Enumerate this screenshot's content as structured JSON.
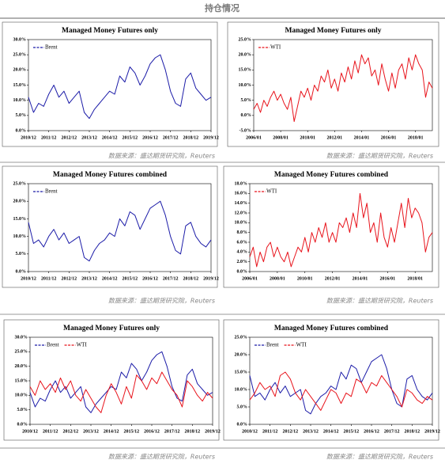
{
  "title": "持仓情况",
  "sources": [
    "数据来源：盛达期货研究院，Reuters",
    "数据来源：盛达期货研究院，Reuters",
    "数据来源：盛达期货研究院，Reuters",
    "数据来源：盛达期货研究院，Reuters",
    "数据来源：盛达期货研究院，Reuters",
    "数据来源：盛达期货研究院，Reuters"
  ],
  "chart_data": [
    {
      "type": "line",
      "title": "Managed Money Futures only",
      "xlim": [
        0,
        36
      ],
      "xticks": [
        {
          "value": 0,
          "label": "2010/12"
        },
        {
          "value": 4,
          "label": "2011/12"
        },
        {
          "value": 8,
          "label": "2012/12"
        },
        {
          "value": 12,
          "label": "2013/12"
        },
        {
          "value": 16,
          "label": "2014/12"
        },
        {
          "value": 20,
          "label": "2015/12"
        },
        {
          "value": 24,
          "label": "2016/12"
        },
        {
          "value": 28,
          "label": "2017/12"
        },
        {
          "value": 32,
          "label": "2018/12"
        },
        {
          "value": 36,
          "label": "2019/12"
        }
      ],
      "ylim": [
        0,
        30
      ],
      "yticks": [
        {
          "value": 0,
          "label": "0.0%"
        },
        {
          "value": 5,
          "label": "5.0%"
        },
        {
          "value": 10,
          "label": "10.0%"
        },
        {
          "value": 15,
          "label": "15.0%"
        },
        {
          "value": 20,
          "label": "20.0%"
        },
        {
          "value": 25,
          "label": "25.0%"
        },
        {
          "value": 30,
          "label": "30.0%"
        }
      ],
      "series": [
        {
          "name": "Brent",
          "color": "#1c1ca8",
          "values": [
            11,
            6,
            9,
            8,
            12,
            15,
            11,
            13,
            9,
            11,
            13,
            6,
            4,
            7,
            9,
            11,
            13,
            12,
            18,
            16,
            21,
            19,
            15,
            18,
            22,
            24,
            25,
            20,
            13,
            9,
            8,
            17,
            19,
            14,
            12,
            10,
            11
          ]
        }
      ]
    },
    {
      "type": "line",
      "title": "Managed Money Futures only",
      "xlim": [
        0,
        53
      ],
      "xticks": [
        {
          "value": 0,
          "label": "2006/01"
        },
        {
          "value": 8,
          "label": "2008/01"
        },
        {
          "value": 16,
          "label": "2010/01"
        },
        {
          "value": 24,
          "label": "2012/01"
        },
        {
          "value": 32,
          "label": "2014/01"
        },
        {
          "value": 40,
          "label": "2016/01"
        },
        {
          "value": 48,
          "label": "2018/01"
        }
      ],
      "ylim": [
        -5,
        25
      ],
      "yticks": [
        {
          "value": -5,
          "label": "-5.0%"
        },
        {
          "value": 0,
          "label": "0.0%"
        },
        {
          "value": 5,
          "label": "5.0%"
        },
        {
          "value": 10,
          "label": "10.0%"
        },
        {
          "value": 15,
          "label": "15.0%"
        },
        {
          "value": 20,
          "label": "20.0%"
        },
        {
          "value": 25,
          "label": "25.0%"
        }
      ],
      "series": [
        {
          "name": "WTI",
          "color": "#e8141c",
          "values": [
            2,
            4,
            1,
            5,
            3,
            6,
            8,
            5,
            7,
            4,
            2,
            6,
            -2,
            3,
            8,
            6,
            9,
            5,
            10,
            8,
            13,
            11,
            15,
            9,
            12,
            8,
            14,
            11,
            16,
            12,
            18,
            14,
            20,
            17,
            19,
            13,
            15,
            10,
            17,
            12,
            8,
            14,
            9,
            15,
            17,
            12,
            19,
            15,
            20,
            17,
            15,
            6,
            11,
            9
          ]
        }
      ]
    },
    {
      "type": "line",
      "title": "Managed Money Futures combined",
      "xlim": [
        0,
        36
      ],
      "xticks": [
        {
          "value": 0,
          "label": "2010/12"
        },
        {
          "value": 4,
          "label": "2011/12"
        },
        {
          "value": 8,
          "label": "2012/12"
        },
        {
          "value": 12,
          "label": "2013/12"
        },
        {
          "value": 16,
          "label": "2014/12"
        },
        {
          "value": 20,
          "label": "2015/12"
        },
        {
          "value": 24,
          "label": "2016/12"
        },
        {
          "value": 28,
          "label": "2017/12"
        },
        {
          "value": 32,
          "label": "2018/12"
        },
        {
          "value": 36,
          "label": "2019/12"
        }
      ],
      "ylim": [
        0,
        25
      ],
      "yticks": [
        {
          "value": 0,
          "label": "0.0%"
        },
        {
          "value": 5,
          "label": "5.0%"
        },
        {
          "value": 10,
          "label": "10.0%"
        },
        {
          "value": 15,
          "label": "15.0%"
        },
        {
          "value": 20,
          "label": "20.0%"
        },
        {
          "value": 25,
          "label": "25.0%"
        }
      ],
      "series": [
        {
          "name": "Brent",
          "color": "#1c1ca8",
          "values": [
            14,
            8,
            9,
            7,
            10,
            12,
            9,
            11,
            8,
            9,
            10,
            4,
            3,
            6,
            8,
            9,
            11,
            10,
            15,
            13,
            17,
            16,
            12,
            15,
            18,
            19,
            20,
            16,
            10,
            6,
            5,
            13,
            14,
            10,
            8,
            7,
            9
          ]
        }
      ]
    },
    {
      "type": "line",
      "title": "Managed Money Futures combined",
      "xlim": [
        0,
        53
      ],
      "xticks": [
        {
          "value": 0,
          "label": "2006/01"
        },
        {
          "value": 8,
          "label": "2008/01"
        },
        {
          "value": 16,
          "label": "2010/01"
        },
        {
          "value": 24,
          "label": "2012/01"
        },
        {
          "value": 32,
          "label": "2014/01"
        },
        {
          "value": 40,
          "label": "2016/01"
        },
        {
          "value": 48,
          "label": "2018/01"
        }
      ],
      "ylim": [
        0,
        18
      ],
      "yticks": [
        {
          "value": 0,
          "label": "0.0%"
        },
        {
          "value": 2,
          "label": "2.0%"
        },
        {
          "value": 4,
          "label": "4.0%"
        },
        {
          "value": 6,
          "label": "6.0%"
        },
        {
          "value": 8,
          "label": "8.0%"
        },
        {
          "value": 10,
          "label": "10.0%"
        },
        {
          "value": 12,
          "label": "12.0%"
        },
        {
          "value": 14,
          "label": "14.0%"
        },
        {
          "value": 16,
          "label": "16.0%"
        },
        {
          "value": 18,
          "label": "18.0%"
        }
      ],
      "series": [
        {
          "name": "WTI",
          "color": "#e8141c",
          "values": [
            3,
            5,
            1,
            4,
            2,
            5,
            6,
            3,
            5,
            3,
            2,
            4,
            1,
            3,
            5,
            4,
            7,
            4,
            8,
            6,
            9,
            7,
            10,
            6,
            8,
            6,
            10,
            9,
            11,
            8,
            12,
            9,
            16,
            11,
            14,
            8,
            10,
            6,
            12,
            7,
            5,
            9,
            6,
            10,
            14,
            9,
            15,
            11,
            13,
            12,
            10,
            4,
            7,
            8
          ]
        }
      ]
    },
    {
      "type": "line",
      "title": "Managed Money Futures only",
      "xlim": [
        0,
        36
      ],
      "xticks": [
        {
          "value": 0,
          "label": "2010/12"
        },
        {
          "value": 4,
          "label": "2011/12"
        },
        {
          "value": 8,
          "label": "2012/12"
        },
        {
          "value": 12,
          "label": "2013/12"
        },
        {
          "value": 16,
          "label": "2014/12"
        },
        {
          "value": 20,
          "label": "2015/12"
        },
        {
          "value": 24,
          "label": "2016/12"
        },
        {
          "value": 28,
          "label": "2017/12"
        },
        {
          "value": 32,
          "label": "2018/12"
        },
        {
          "value": 36,
          "label": "2019/12"
        }
      ],
      "ylim": [
        0,
        30
      ],
      "yticks": [
        {
          "value": 0,
          "label": "0.0%"
        },
        {
          "value": 5,
          "label": "5.0%"
        },
        {
          "value": 10,
          "label": "10.0%"
        },
        {
          "value": 15,
          "label": "15.0%"
        },
        {
          "value": 20,
          "label": "20.0%"
        },
        {
          "value": 25,
          "label": "25.0%"
        },
        {
          "value": 30,
          "label": "30.0%"
        }
      ],
      "series": [
        {
          "name": "Brent",
          "color": "#1c1ca8",
          "values": [
            11,
            6,
            9,
            8,
            12,
            15,
            11,
            13,
            9,
            11,
            13,
            6,
            4,
            7,
            9,
            11,
            13,
            12,
            18,
            16,
            21,
            19,
            15,
            18,
            22,
            24,
            25,
            20,
            13,
            9,
            8,
            17,
            19,
            14,
            12,
            10,
            11
          ]
        },
        {
          "name": "WTI",
          "color": "#e8141c",
          "values": [
            13,
            10,
            15,
            12,
            14,
            11,
            16,
            12,
            15,
            10,
            8,
            12,
            9,
            6,
            4,
            10,
            14,
            11,
            7,
            13,
            9,
            17,
            15,
            12,
            16,
            14,
            18,
            15,
            12,
            10,
            6,
            15,
            13,
            10,
            8,
            11,
            9
          ]
        }
      ]
    },
    {
      "type": "line",
      "title": "Managed Money Futures combined",
      "xlim": [
        0,
        36
      ],
      "xticks": [
        {
          "value": 0,
          "label": "2010/12"
        },
        {
          "value": 4,
          "label": "2011/12"
        },
        {
          "value": 8,
          "label": "2012/12"
        },
        {
          "value": 12,
          "label": "2013/12"
        },
        {
          "value": 16,
          "label": "2014/12"
        },
        {
          "value": 20,
          "label": "2015/12"
        },
        {
          "value": 24,
          "label": "2016/12"
        },
        {
          "value": 28,
          "label": "2017/12"
        },
        {
          "value": 32,
          "label": "2018/12"
        },
        {
          "value": 36,
          "label": "2019/12"
        }
      ],
      "ylim": [
        0,
        25
      ],
      "yticks": [
        {
          "value": 0,
          "label": "0.0%"
        },
        {
          "value": 5,
          "label": "5.0%"
        },
        {
          "value": 10,
          "label": "10.0%"
        },
        {
          "value": 15,
          "label": "15.0%"
        },
        {
          "value": 20,
          "label": "20.0%"
        },
        {
          "value": 25,
          "label": "25.0%"
        }
      ],
      "series": [
        {
          "name": "Brent",
          "color": "#1c1ca8",
          "values": [
            14,
            8,
            9,
            7,
            10,
            12,
            9,
            11,
            8,
            9,
            10,
            4,
            3,
            6,
            8,
            9,
            11,
            10,
            15,
            13,
            17,
            16,
            12,
            15,
            18,
            19,
            20,
            16,
            10,
            6,
            5,
            13,
            14,
            10,
            8,
            7,
            9
          ]
        },
        {
          "name": "WTI",
          "color": "#e8141c",
          "values": [
            7,
            9,
            12,
            10,
            11,
            8,
            14,
            15,
            13,
            9,
            7,
            10,
            8,
            6,
            4,
            7,
            10,
            9,
            6,
            9,
            8,
            13,
            12,
            9,
            12,
            11,
            14,
            12,
            10,
            8,
            5,
            10,
            9,
            7,
            6,
            8,
            7
          ]
        }
      ]
    }
  ]
}
